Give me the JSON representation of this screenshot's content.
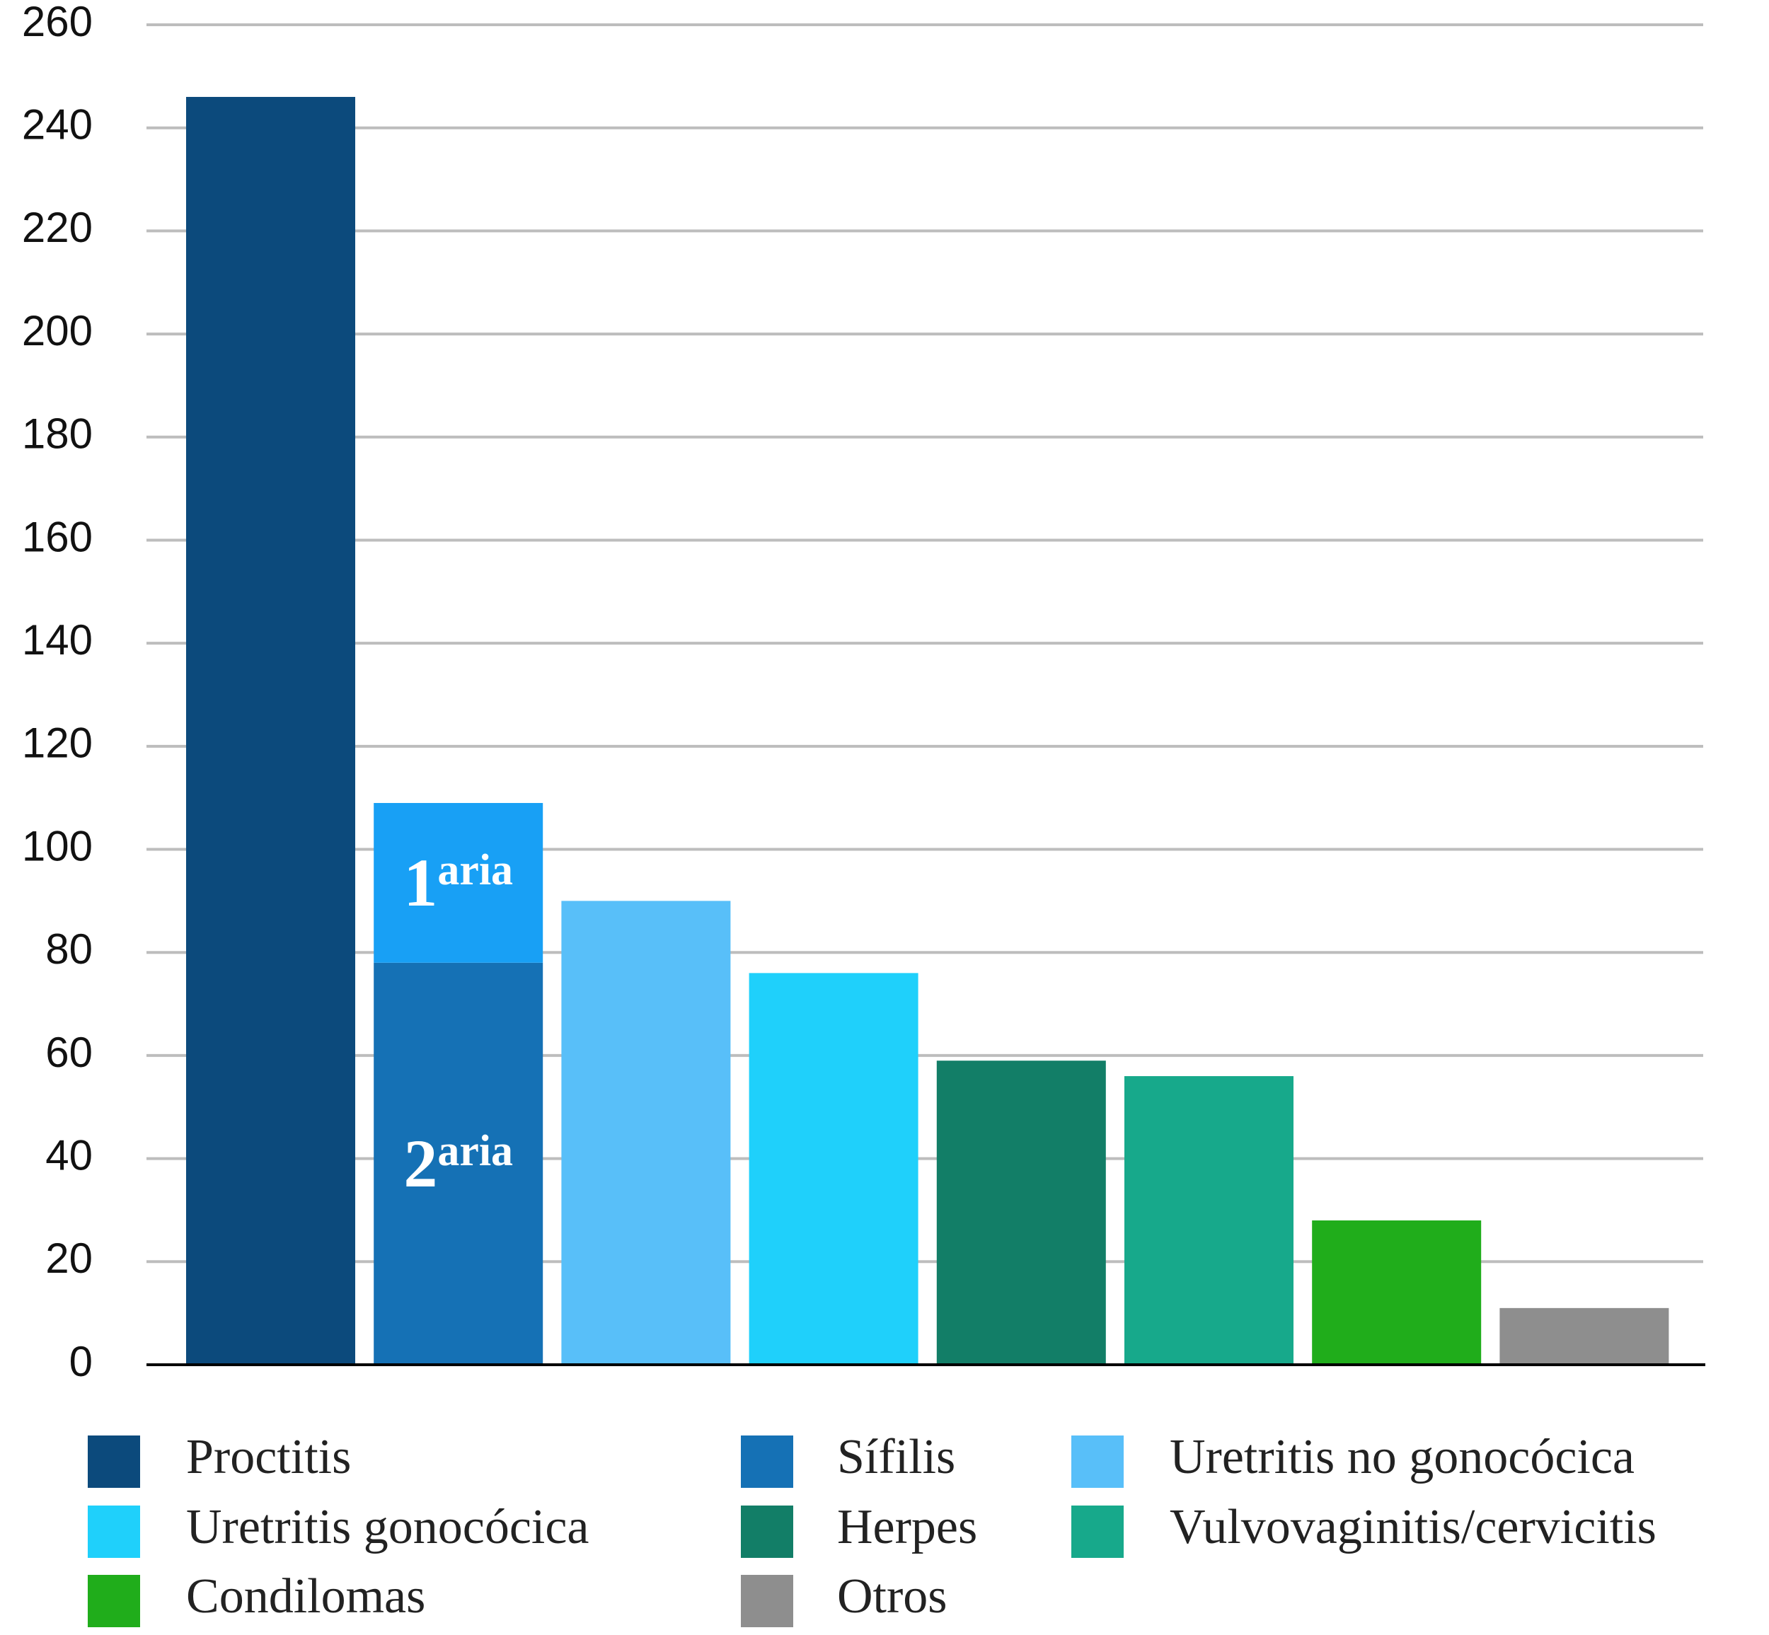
{
  "chart_data": {
    "type": "bar",
    "categories": [
      "Proctitis",
      "Sífilis",
      "Uretritis no gonocócica",
      "Uretritis gonocócica",
      "Herpes",
      "Vulvovaginitis/cervicitis",
      "Condilomas",
      "Otros"
    ],
    "values": [
      246,
      [
        78,
        31
      ],
      90,
      76,
      59,
      56,
      28,
      11
    ],
    "colors": [
      "#0c4a7c",
      "#1571b5",
      "#58bff9",
      "#1fd0fb",
      "#127e67",
      "#17a98b",
      "#20ad1b",
      "#8e8e8e"
    ],
    "segment_colors": [
      "#1571b5",
      "#18a0f5"
    ],
    "segment_labels": [
      {
        "num": "2",
        "sup": "aria"
      },
      {
        "num": "1",
        "sup": "aria"
      }
    ],
    "ylim": [
      0,
      260
    ],
    "yticks": [
      0,
      20,
      40,
      60,
      80,
      100,
      120,
      140,
      160,
      180,
      200,
      220,
      240,
      260
    ],
    "grid": true
  }
}
